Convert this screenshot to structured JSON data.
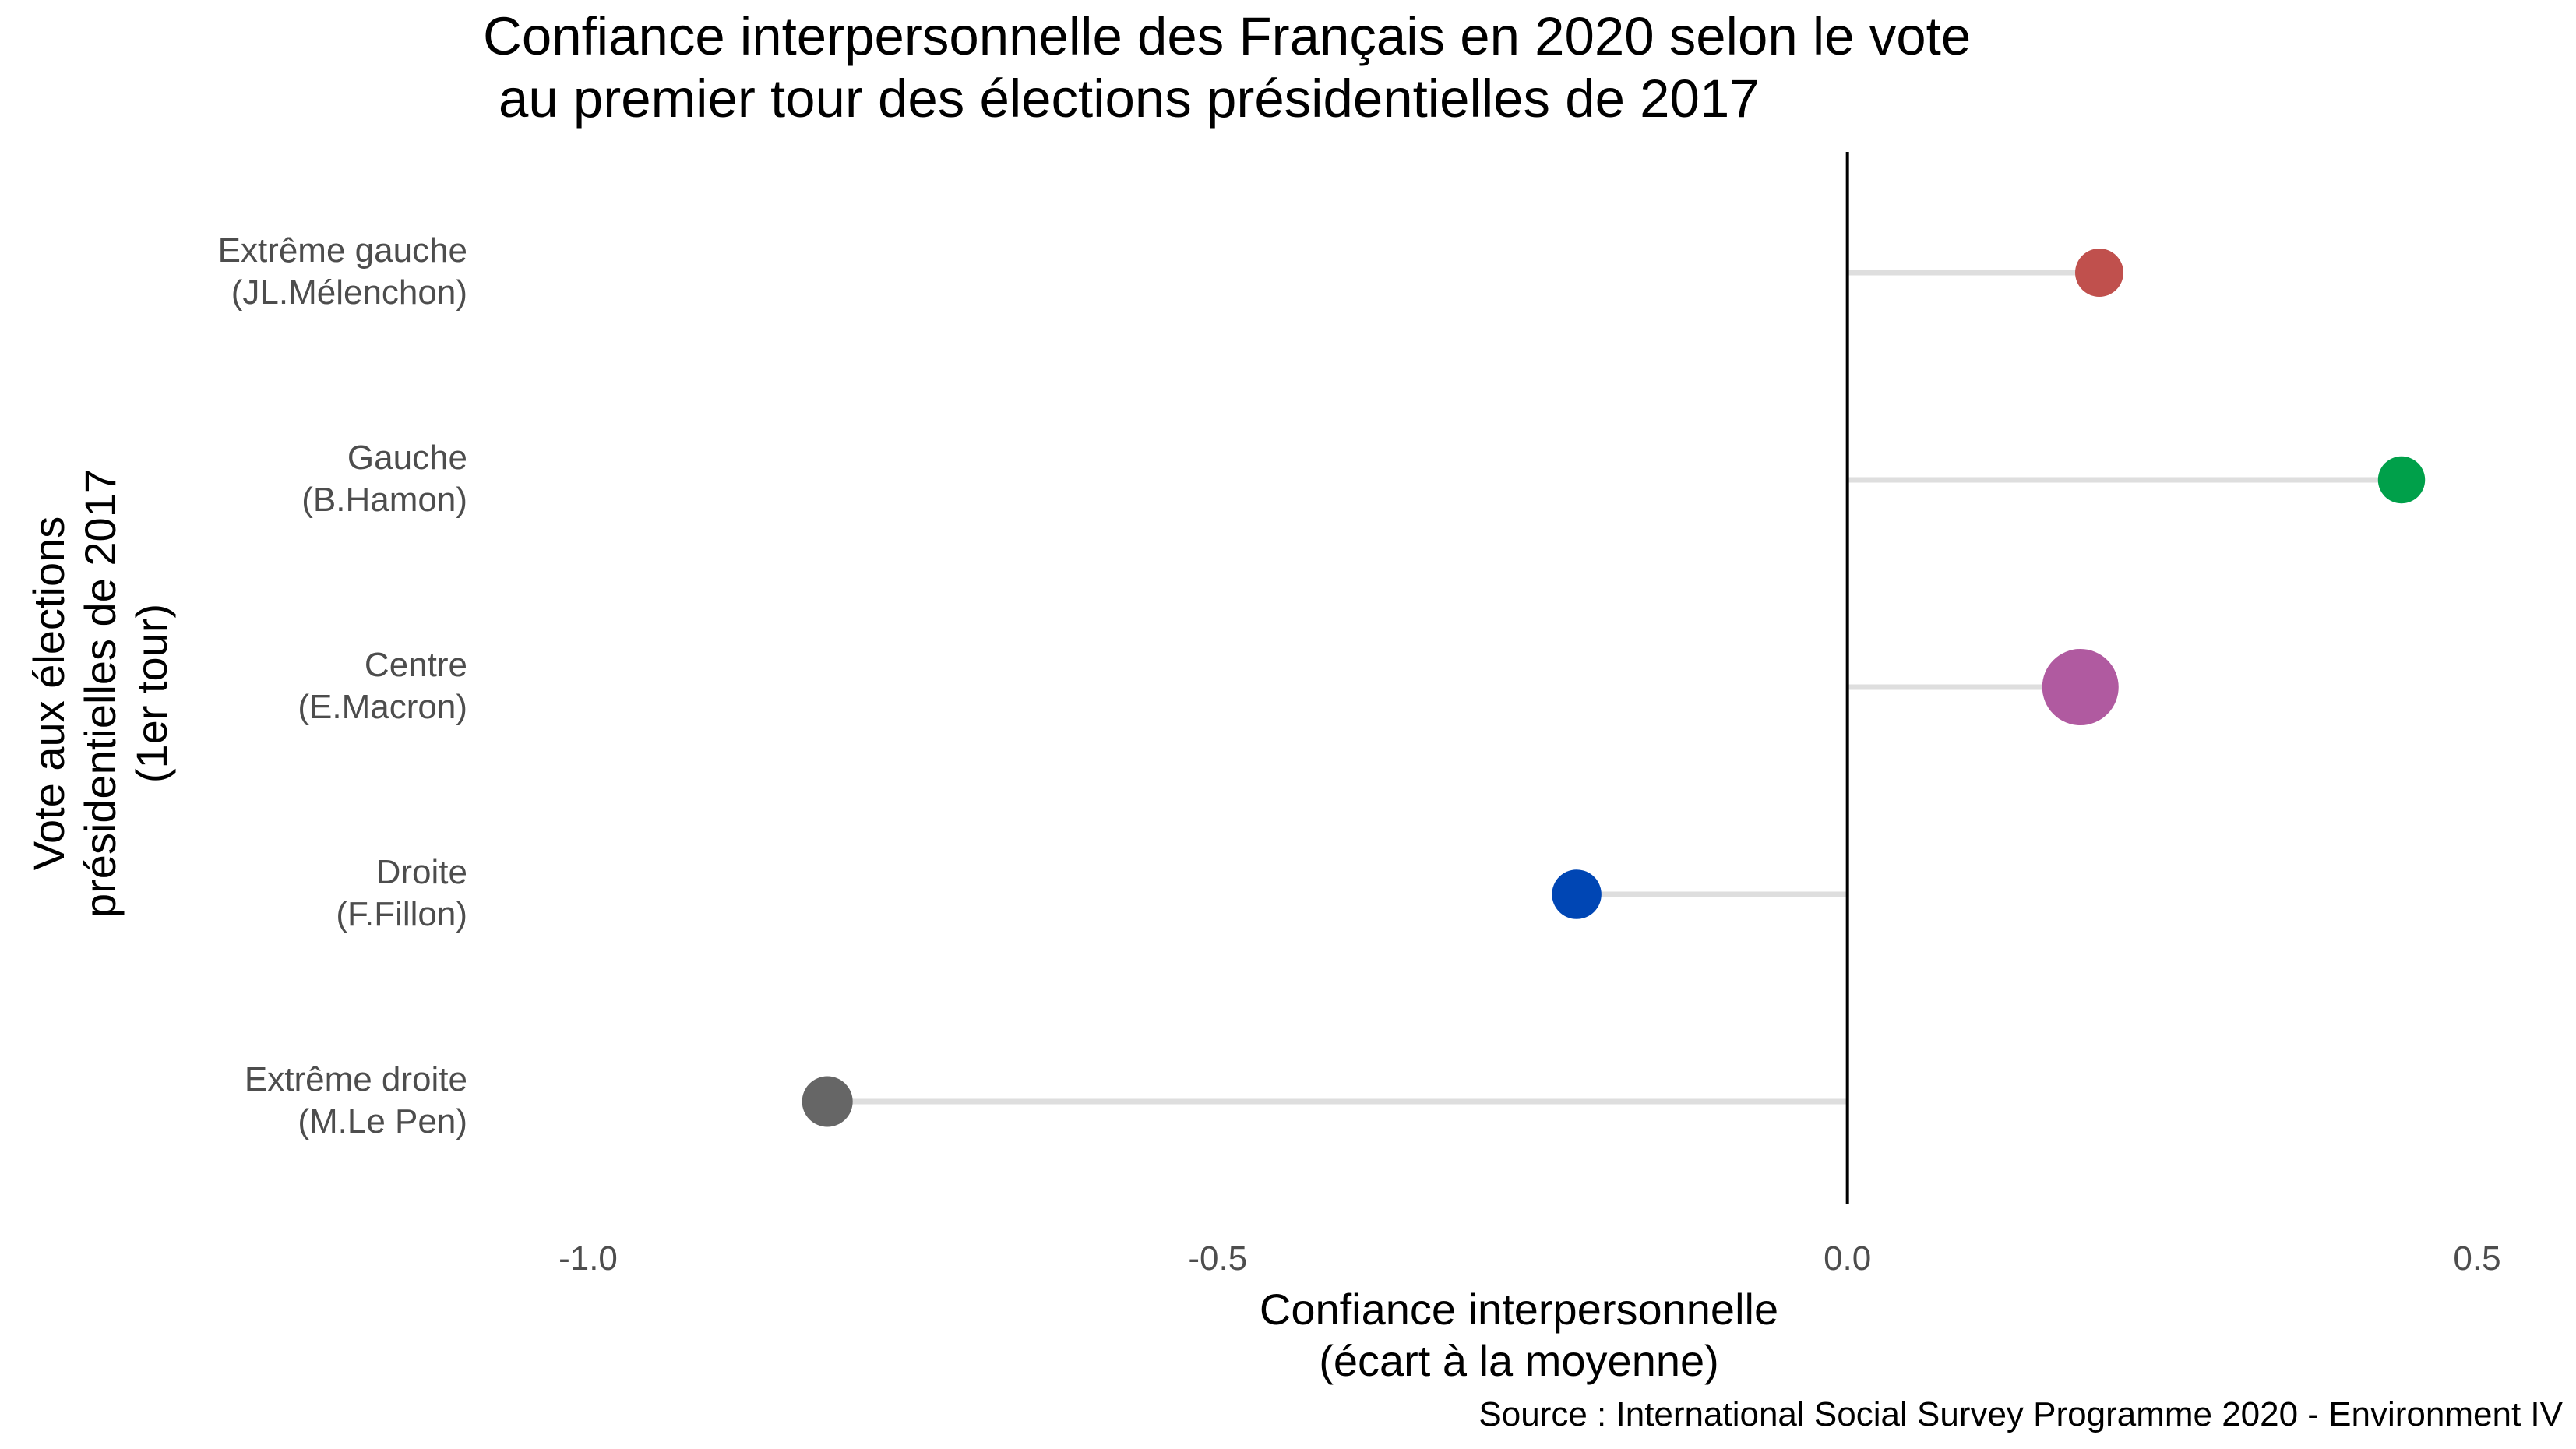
{
  "chart_data": {
    "type": "lollipop",
    "title": [
      "Confiance interpersonnelle des Français en 2020 selon le vote",
      "au premier tour des élections présidentielles de 2017"
    ],
    "xlabel": [
      "Confiance interpersonnelle",
      "(écart à la moyenne)"
    ],
    "ylabel": [
      "Vote aux élections",
      "présidentielles de 2017",
      "(1er tour)"
    ],
    "source": "Source : International Social Survey Programme 2020 - Environment IV",
    "xlim": [
      -1.0,
      0.5
    ],
    "xticks": [
      -1.0,
      -0.5,
      0.0,
      0.5
    ],
    "xtick_labels": [
      "-1.0",
      "-0.5",
      "0.0",
      "0.5"
    ],
    "reference_line": 0,
    "grid": false,
    "categories": [
      {
        "label": [
          "Extrême gauche",
          "(JL.Mélenchon)"
        ],
        "value": 0.2,
        "color": "#c0504d",
        "size": 1.0
      },
      {
        "label": [
          "Gauche",
          "(B.Hamon)"
        ],
        "value": 0.44,
        "color": "#00a04a",
        "size": 0.95
      },
      {
        "label": [
          "Centre",
          "(E.Macron)"
        ],
        "value": 0.185,
        "color": "#b05aa0",
        "size": 2.5
      },
      {
        "label": [
          "Droite",
          "(F.Fillon)"
        ],
        "value": -0.215,
        "color": "#0046b4",
        "size": 1.05
      },
      {
        "label": [
          "Extrême droite",
          "(M.Le Pen)"
        ],
        "value": -0.81,
        "color": "#666666",
        "size": 1.1
      }
    ]
  }
}
